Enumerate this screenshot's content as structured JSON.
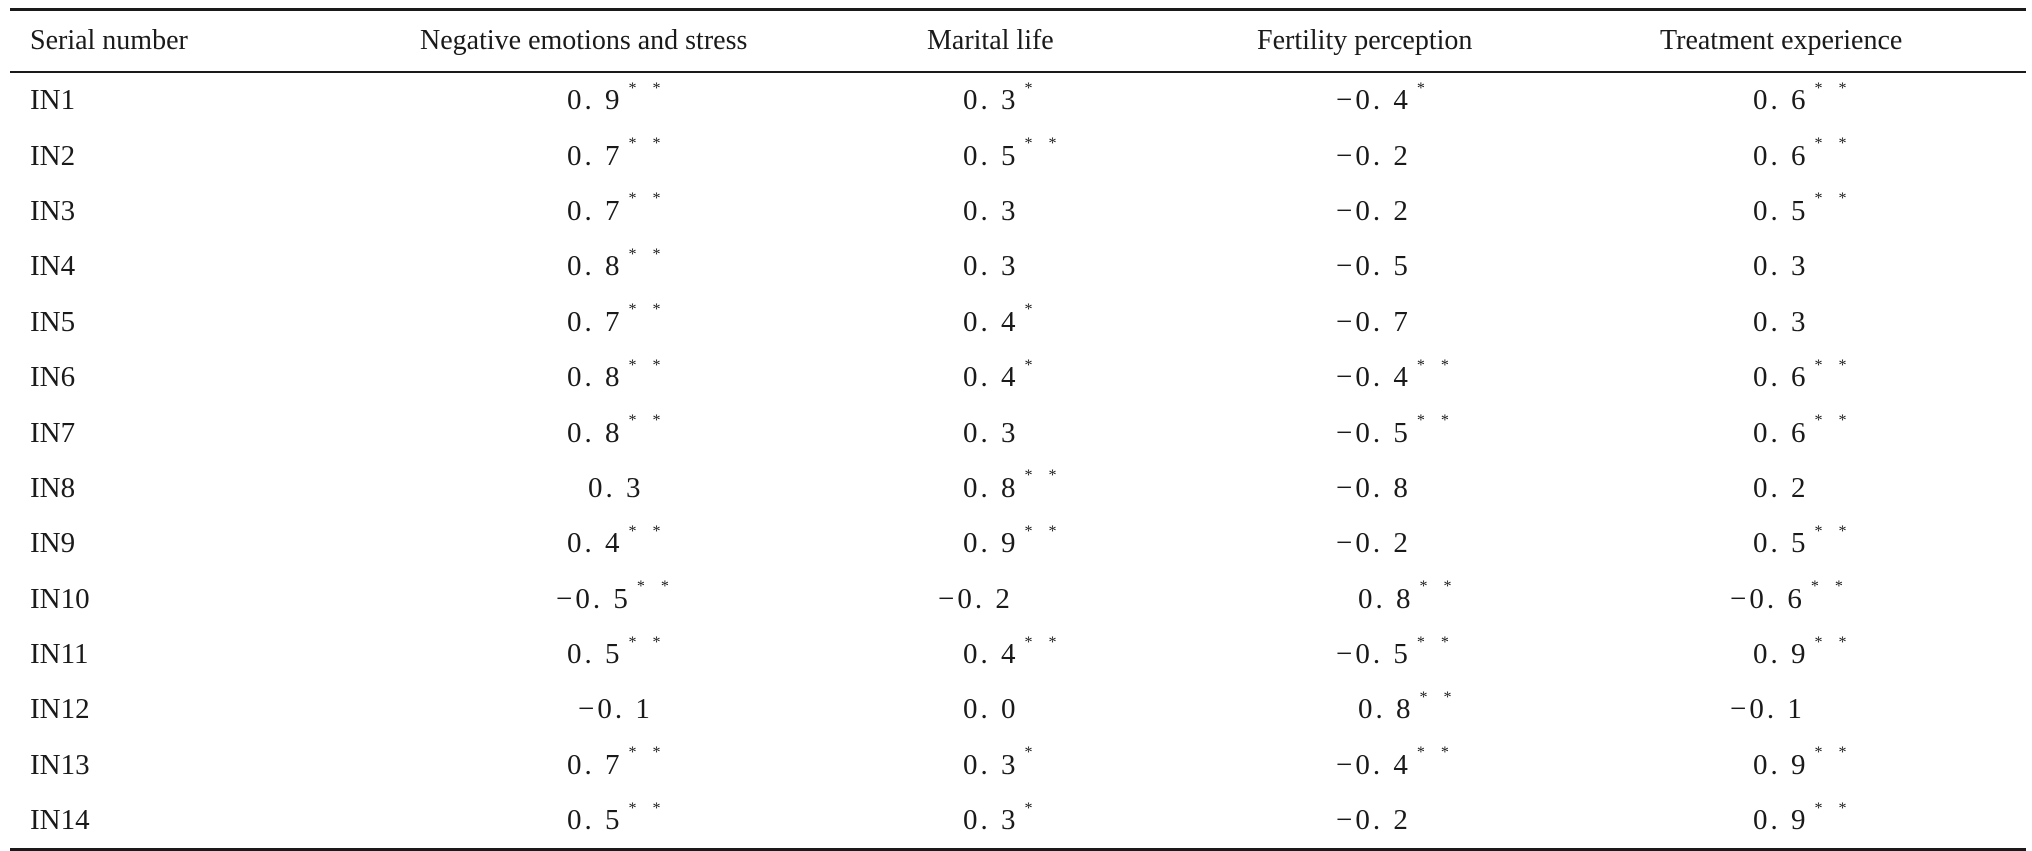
{
  "table": {
    "headers": [
      "Serial number",
      "Negative emotions and stress",
      "Marital life",
      "Fertility perception",
      "Treatment experience"
    ],
    "rows": [
      {
        "id": "IN1",
        "cells": [
          {
            "v": "0. 9",
            "s": "* *"
          },
          {
            "v": "0. 3",
            "s": "*"
          },
          {
            "v": "−0. 4",
            "s": "*"
          },
          {
            "v": "0. 6",
            "s": "* *"
          }
        ]
      },
      {
        "id": "IN2",
        "cells": [
          {
            "v": "0. 7",
            "s": "* *"
          },
          {
            "v": "0. 5",
            "s": "* *"
          },
          {
            "v": "−0. 2",
            "s": ""
          },
          {
            "v": "0. 6",
            "s": "* *"
          }
        ]
      },
      {
        "id": "IN3",
        "cells": [
          {
            "v": "0. 7",
            "s": "* *"
          },
          {
            "v": "0. 3",
            "s": ""
          },
          {
            "v": "−0. 2",
            "s": ""
          },
          {
            "v": "0. 5",
            "s": "* *"
          }
        ]
      },
      {
        "id": "IN4",
        "cells": [
          {
            "v": "0. 8",
            "s": "* *"
          },
          {
            "v": "0. 3",
            "s": ""
          },
          {
            "v": "−0. 5",
            "s": ""
          },
          {
            "v": "0. 3",
            "s": ""
          }
        ]
      },
      {
        "id": "IN5",
        "cells": [
          {
            "v": "0. 7",
            "s": "* *"
          },
          {
            "v": "0. 4",
            "s": "*"
          },
          {
            "v": "−0. 7",
            "s": ""
          },
          {
            "v": "0. 3",
            "s": ""
          }
        ]
      },
      {
        "id": "IN6",
        "cells": [
          {
            "v": "0. 8",
            "s": "* *"
          },
          {
            "v": "0. 4",
            "s": "*"
          },
          {
            "v": "−0. 4",
            "s": "* *"
          },
          {
            "v": "0. 6",
            "s": "* *"
          }
        ]
      },
      {
        "id": "IN7",
        "cells": [
          {
            "v": "0. 8",
            "s": "* *"
          },
          {
            "v": "0. 3",
            "s": ""
          },
          {
            "v": "−0. 5",
            "s": "* *"
          },
          {
            "v": "0. 6",
            "s": "* *"
          }
        ]
      },
      {
        "id": "IN8",
        "cells": [
          {
            "v": "0. 3",
            "s": ""
          },
          {
            "v": "0. 8",
            "s": "* *"
          },
          {
            "v": "−0. 8",
            "s": ""
          },
          {
            "v": "0. 2",
            "s": ""
          }
        ]
      },
      {
        "id": "IN9",
        "cells": [
          {
            "v": "0. 4",
            "s": "* *"
          },
          {
            "v": "0. 9",
            "s": "* *"
          },
          {
            "v": "−0. 2",
            "s": ""
          },
          {
            "v": "0. 5",
            "s": "* *"
          }
        ]
      },
      {
        "id": "IN10",
        "cells": [
          {
            "v": "−0. 5",
            "s": "* *"
          },
          {
            "v": "−0. 2",
            "s": ""
          },
          {
            "v": "0. 8",
            "s": "* *"
          },
          {
            "v": "−0. 6",
            "s": "* *"
          }
        ]
      },
      {
        "id": "IN11",
        "cells": [
          {
            "v": "0. 5",
            "s": "* *"
          },
          {
            "v": "0. 4",
            "s": "* *"
          },
          {
            "v": "−0. 5",
            "s": "* *"
          },
          {
            "v": "0. 9",
            "s": "* *"
          }
        ]
      },
      {
        "id": "IN12",
        "cells": [
          {
            "v": "−0. 1",
            "s": ""
          },
          {
            "v": "0. 0",
            "s": ""
          },
          {
            "v": "0. 8",
            "s": "* *"
          },
          {
            "v": "−0. 1",
            "s": ""
          }
        ]
      },
      {
        "id": "IN13",
        "cells": [
          {
            "v": "0. 7",
            "s": "* *"
          },
          {
            "v": "0. 3",
            "s": "*"
          },
          {
            "v": "−0. 4",
            "s": "* *"
          },
          {
            "v": "0. 9",
            "s": "* *"
          }
        ]
      },
      {
        "id": "IN14",
        "cells": [
          {
            "v": "0. 5",
            "s": "* *"
          },
          {
            "v": "0. 3",
            "s": "*"
          },
          {
            "v": "−0. 2",
            "s": ""
          },
          {
            "v": "0. 9",
            "s": "* *"
          }
        ]
      }
    ]
  }
}
